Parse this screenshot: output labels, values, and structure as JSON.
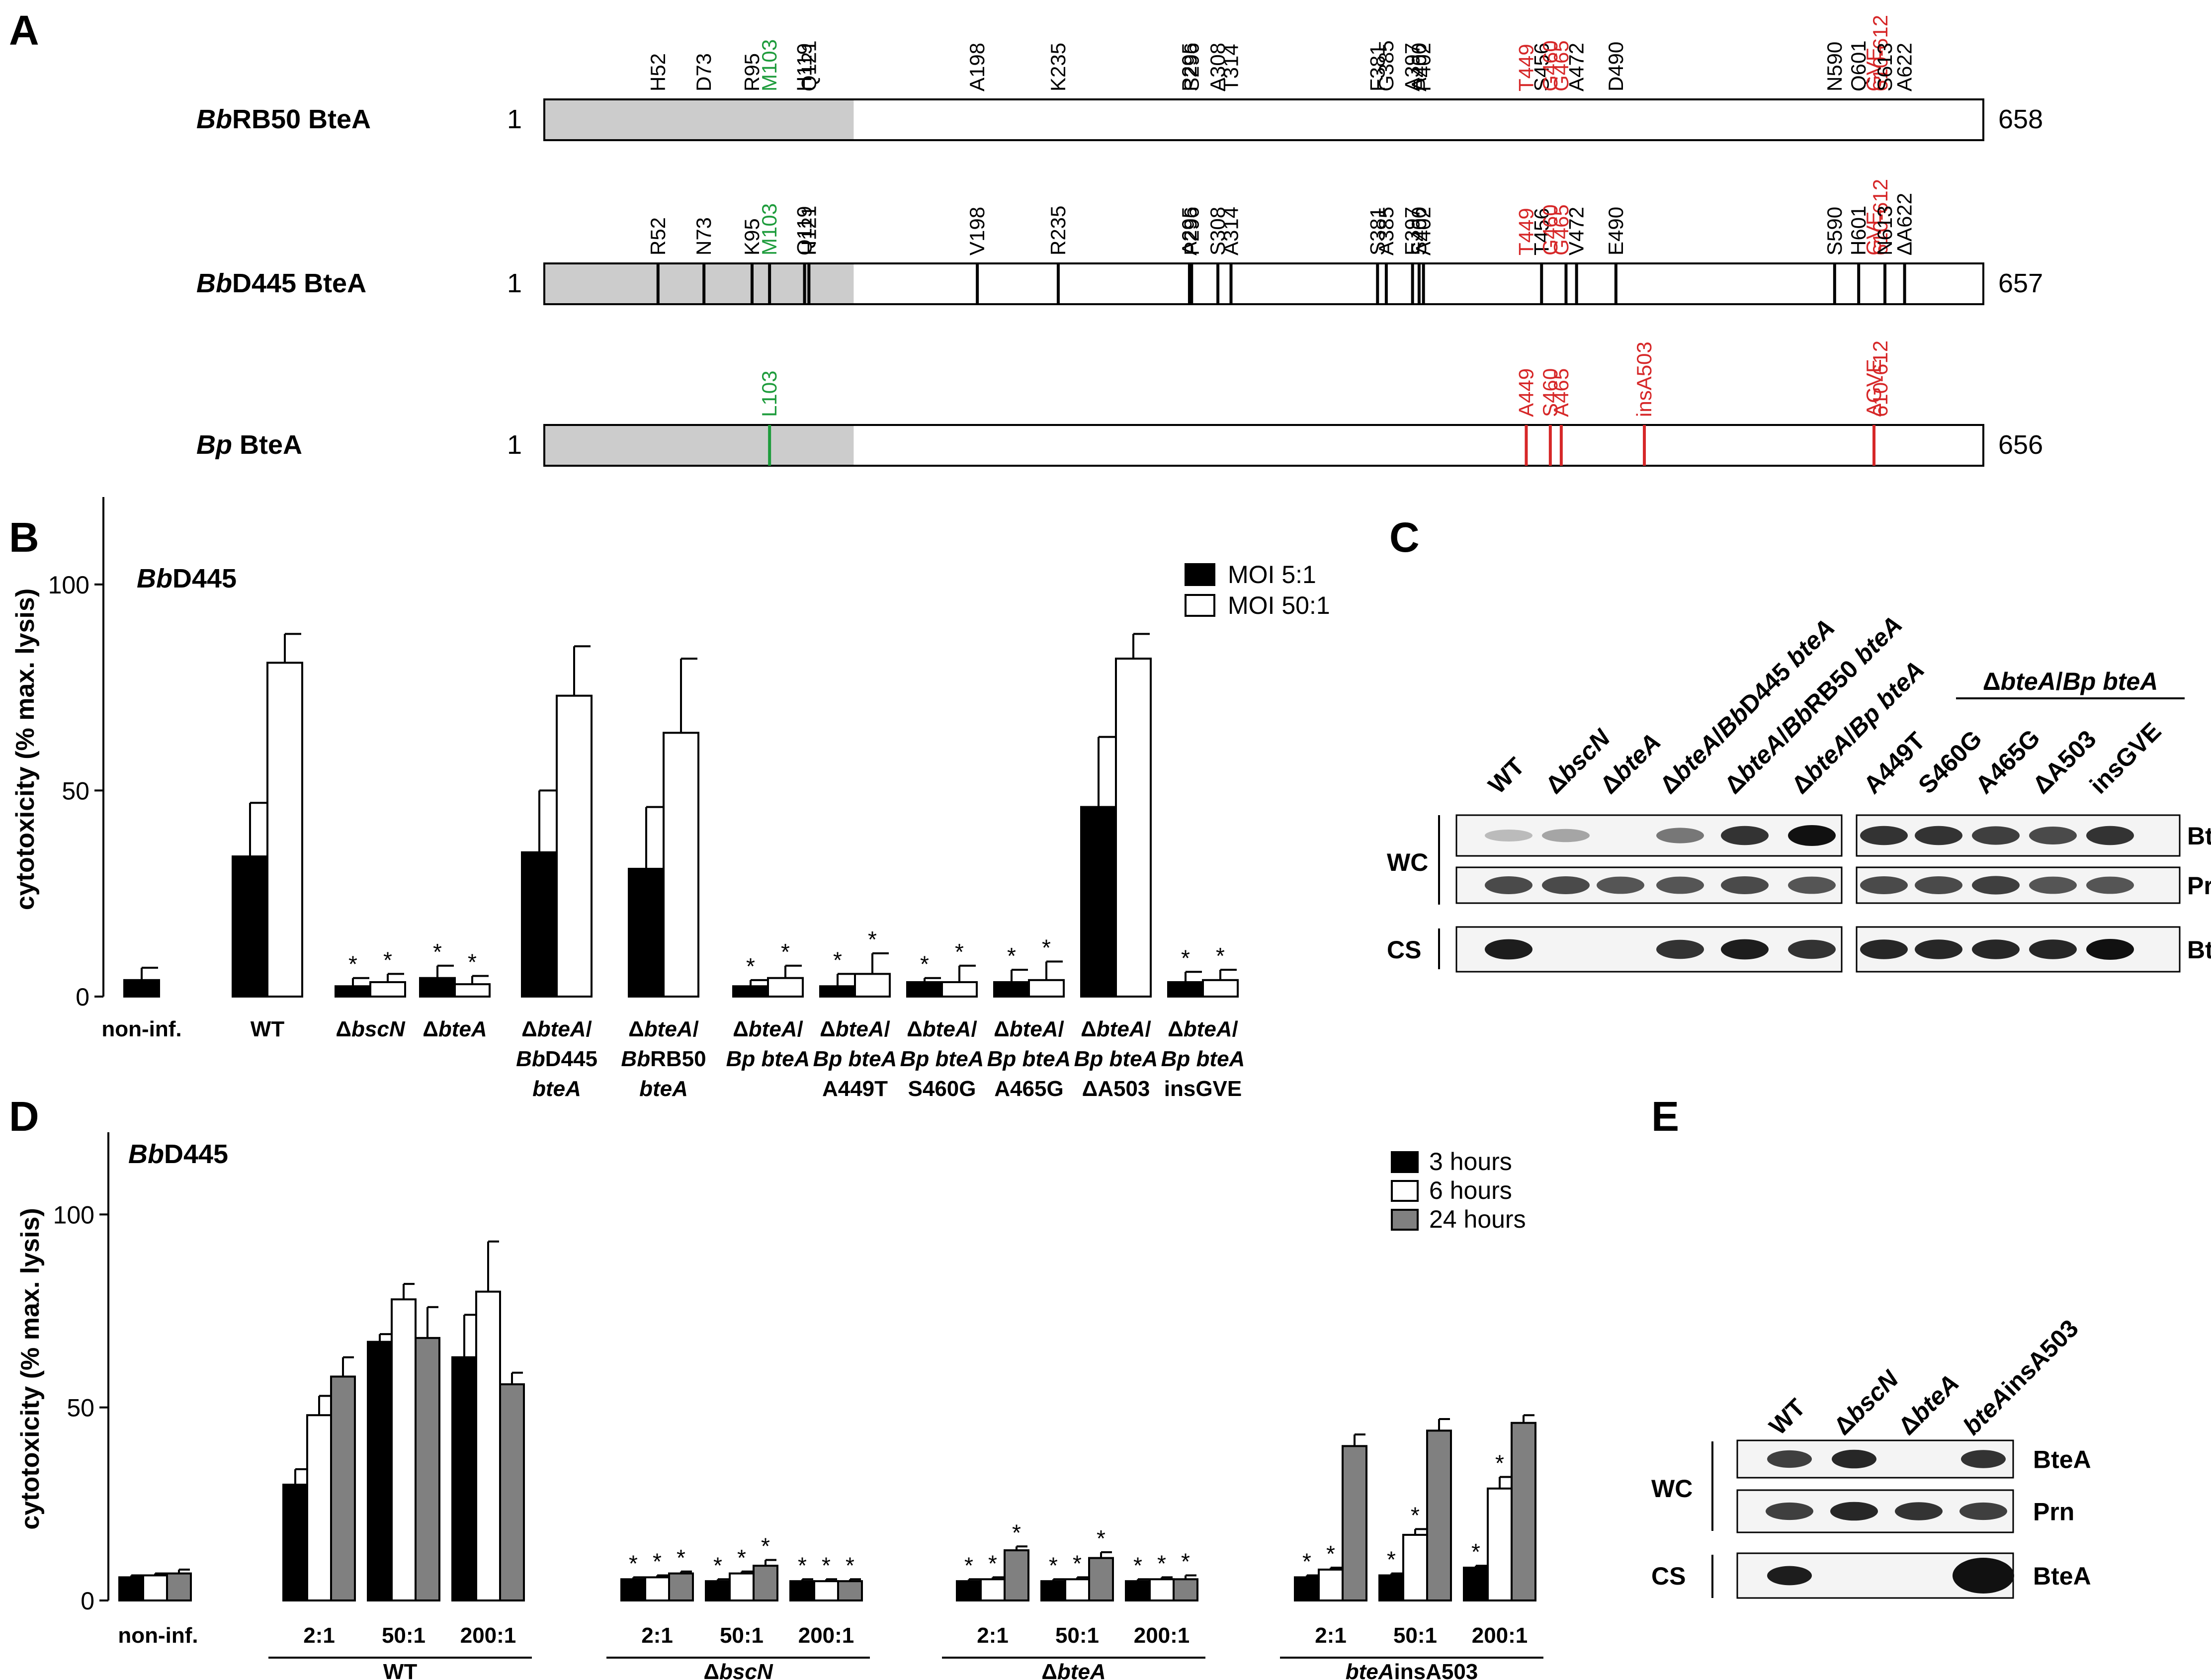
{
  "panels": {
    "A": "A",
    "B": "B",
    "C": "C",
    "D": "D",
    "E": "E"
  },
  "panel_a": {
    "protein_start": "1",
    "proteins": [
      {
        "name_prefix": "Bb",
        "name_suffix": "RB50 BteA",
        "length": "658",
        "mutations": [
          {
            "label": "H52",
            "color": "#000000"
          },
          {
            "label": "D73",
            "color": "#000000"
          },
          {
            "label": "R95",
            "color": "#000000"
          },
          {
            "label": "M103",
            "color": "#1e9c3c"
          },
          {
            "label": "H119",
            "color": "#000000"
          },
          {
            "label": "Q121",
            "color": "#000000"
          },
          {
            "label": "A198",
            "color": "#000000"
          },
          {
            "label": "K235",
            "color": "#000000"
          },
          {
            "label": "P295",
            "color": "#000000"
          },
          {
            "label": "S296",
            "color": "#000000"
          },
          {
            "label": "A308",
            "color": "#000000"
          },
          {
            "label": "T314",
            "color": "#000000"
          },
          {
            "label": "F381",
            "color": "#000000"
          },
          {
            "label": "G385",
            "color": "#000000"
          },
          {
            "label": "A397",
            "color": "#000000"
          },
          {
            "label": "A400",
            "color": "#000000"
          },
          {
            "label": "P402",
            "color": "#000000"
          },
          {
            "label": "T449",
            "color": "#d62728"
          },
          {
            "label": "S456",
            "color": "#000000"
          },
          {
            "label": "G460",
            "color": "#d62728"
          },
          {
            "label": "G465",
            "color": "#d62728"
          },
          {
            "label": "A472",
            "color": "#000000"
          },
          {
            "label": "D490",
            "color": "#000000"
          },
          {
            "label": "N590",
            "color": "#000000"
          },
          {
            "label": "Q601",
            "color": "#000000"
          },
          {
            "label": "GVE",
            "color": "#d62728"
          },
          {
            "label": "610-612",
            "color": "#d62728"
          },
          {
            "label": "S613",
            "color": "#000000"
          },
          {
            "label": "A622",
            "color": "#000000"
          }
        ]
      },
      {
        "name_prefix": "Bb",
        "name_suffix": "D445 BteA",
        "length": "657",
        "mutations": [
          {
            "label": "R52",
            "color": "#000000"
          },
          {
            "label": "N73",
            "color": "#000000"
          },
          {
            "label": "K95",
            "color": "#000000"
          },
          {
            "label": "M103",
            "color": "#1e9c3c"
          },
          {
            "label": "Q119",
            "color": "#000000"
          },
          {
            "label": "H121",
            "color": "#000000"
          },
          {
            "label": "V198",
            "color": "#000000"
          },
          {
            "label": "R235",
            "color": "#000000"
          },
          {
            "label": "A295",
            "color": "#000000"
          },
          {
            "label": "P296",
            "color": "#000000"
          },
          {
            "label": "S308",
            "color": "#000000"
          },
          {
            "label": "A314",
            "color": "#000000"
          },
          {
            "label": "S381",
            "color": "#000000"
          },
          {
            "label": "A385",
            "color": "#000000"
          },
          {
            "label": "E397",
            "color": "#000000"
          },
          {
            "label": "S400",
            "color": "#000000"
          },
          {
            "label": "A402",
            "color": "#000000"
          },
          {
            "label": "T449",
            "color": "#d62728"
          },
          {
            "label": "T456",
            "color": "#000000"
          },
          {
            "label": "G460",
            "color": "#d62728"
          },
          {
            "label": "G465",
            "color": "#d62728"
          },
          {
            "label": "V472",
            "color": "#000000"
          },
          {
            "label": "E490",
            "color": "#000000"
          },
          {
            "label": "S590",
            "color": "#000000"
          },
          {
            "label": "H601",
            "color": "#000000"
          },
          {
            "label": "GVE",
            "color": "#d62728"
          },
          {
            "label": "610-612",
            "color": "#d62728"
          },
          {
            "label": "N613",
            "color": "#000000"
          },
          {
            "label": "ΔA622",
            "color": "#000000"
          }
        ]
      },
      {
        "name_prefix": "Bp",
        "name_suffix": " BteA",
        "length": "656",
        "mutations": [
          {
            "label": "L103",
            "color": "#1e9c3c"
          },
          {
            "label": "A449",
            "color": "#d62728"
          },
          {
            "label": "S460",
            "color": "#d62728"
          },
          {
            "label": "A465",
            "color": "#d62728"
          },
          {
            "label": "insA503",
            "color": "#d62728"
          },
          {
            "label": "ΔGVE",
            "color": "#d62728"
          },
          {
            "label": "610-612",
            "color": "#d62728"
          }
        ]
      }
    ]
  },
  "panel_b": {
    "strain_label": {
      "prefix": "Bb",
      "suffix": "D445"
    },
    "ylabel": "cytotoxicity (% max. lysis)",
    "legend": [
      "MOI 5:1",
      "MOI 50:1"
    ],
    "x_labels": [
      [
        "non-inf."
      ],
      [
        "WT"
      ],
      [
        "ΔbscN"
      ],
      [
        "ΔbteA"
      ],
      [
        "ΔbteA/",
        "BbD445",
        "bteA"
      ],
      [
        "ΔbteA/",
        "BbRB50",
        "bteA"
      ],
      [
        "ΔbteA/",
        "Bp bteA"
      ],
      [
        "ΔbteA/",
        "Bp bteA",
        "A449T"
      ],
      [
        "ΔbteA/",
        "Bp bteA",
        "S460G"
      ],
      [
        "ΔbteA/",
        "Bp bteA",
        "A465G"
      ],
      [
        "ΔbteA/",
        "Bp bteA",
        "ΔA503"
      ],
      [
        "ΔbteA/",
        "Bp bteA",
        "insGVE"
      ]
    ],
    "significance_mark": "*"
  },
  "panel_c": {
    "group_header": "ΔbteA/Bp bteA",
    "lane_labels": [
      "WT",
      "ΔbscN",
      "ΔbteA",
      "ΔbteA/BbD445 bteA",
      "ΔbteA/BbRB50 bteA",
      "ΔbteA/Bp bteA",
      "A449T",
      "S460G",
      "A465G",
      "ΔA503",
      "insGVE"
    ],
    "row_groups": [
      "WC",
      "CS"
    ],
    "row_labels": [
      "BteA",
      "Prn",
      "BteA"
    ]
  },
  "panel_d": {
    "strain_label": {
      "prefix": "Bb",
      "suffix": "D445"
    },
    "ylabel": "cytotoxicity (% max. lysis)",
    "legend": [
      "3 hours",
      "6 hours",
      "24 hours"
    ],
    "moi_labels": [
      "2:1",
      "50:1",
      "200:1"
    ],
    "group_labels": [
      "WT",
      "ΔbscN",
      "ΔbteA",
      "bteAinsA503"
    ],
    "non_inf_label": "non-inf.",
    "significance_mark": "*"
  },
  "panel_e": {
    "lane_labels": [
      "WT",
      "ΔbscN",
      "ΔbteA",
      "bteAinsA503"
    ],
    "row_groups": [
      "WC",
      "CS"
    ],
    "row_labels": [
      "BteA",
      "Prn",
      "BteA"
    ]
  },
  "chart_data": [
    {
      "type": "bar",
      "panel": "B",
      "categories": [
        "non-inf.",
        "WT",
        "ΔbscN",
        "ΔbteA",
        "ΔbteA/BbD445 bteA",
        "ΔbteA/BbRB50 bteA",
        "ΔbteA/Bp bteA",
        "ΔbteA/Bp bteA A449T",
        "ΔbteA/Bp bteA S460G",
        "ΔbteA/Bp bteA A465G",
        "ΔbteA/Bp bteA ΔA503",
        "ΔbteA/Bp bteA insGVE"
      ],
      "series": [
        {
          "name": "MOI 5:1",
          "values": [
            4,
            34,
            2.5,
            4.5,
            35,
            31,
            2.5,
            2.5,
            3.5,
            3.5,
            46,
            3.5
          ],
          "errors": [
            3,
            13,
            2,
            3,
            15,
            15,
            1.5,
            3,
            1,
            3,
            17,
            2.5
          ],
          "significant": [
            false,
            false,
            true,
            true,
            false,
            false,
            true,
            true,
            true,
            true,
            false,
            true
          ]
        },
        {
          "name": "MOI 50:1",
          "values": [
            0,
            81,
            3.5,
            3,
            73,
            64,
            4.5,
            5.5,
            3.5,
            4,
            82,
            4
          ],
          "errors": [
            0,
            7,
            2,
            2,
            12,
            18,
            3,
            5,
            4,
            4.5,
            6,
            2.5
          ],
          "significant": [
            false,
            false,
            true,
            true,
            false,
            false,
            true,
            true,
            true,
            true,
            false,
            true
          ]
        }
      ],
      "ylabel": "cytotoxicity (% max. lysis)",
      "ylim": [
        0,
        120
      ],
      "yticks": [
        0,
        50,
        100
      ]
    },
    {
      "type": "bar",
      "panel": "D",
      "categories": [
        "non-inf.",
        "WT 2:1",
        "WT 50:1",
        "WT 200:1",
        "ΔbscN 2:1",
        "ΔbscN 50:1",
        "ΔbscN 200:1",
        "ΔbteA 2:1",
        "ΔbteA 50:1",
        "ΔbteA 200:1",
        "bteAinsA503 2:1",
        "bteAinsA503 50:1",
        "bteAinsA503 200:1"
      ],
      "series": [
        {
          "name": "3 hours",
          "values": [
            6,
            30,
            67,
            63,
            5.5,
            5,
            5,
            5,
            5,
            5,
            6,
            6.5,
            8.5
          ],
          "errors": [
            0.5,
            4,
            2,
            11,
            0.5,
            0.5,
            0.5,
            0.5,
            0.5,
            0.5,
            0.5,
            0.5,
            0.5
          ],
          "significant": [
            false,
            false,
            false,
            false,
            true,
            true,
            true,
            true,
            true,
            true,
            true,
            true,
            true
          ]
        },
        {
          "name": "6 hours",
          "values": [
            6.5,
            48,
            78,
            80,
            6,
            7,
            5,
            5.5,
            5.5,
            5.5,
            8,
            17,
            29
          ],
          "errors": [
            0.5,
            5,
            4,
            13,
            0.5,
            0.5,
            0.5,
            0.5,
            0.5,
            0.5,
            0.5,
            1.5,
            3
          ],
          "significant": [
            false,
            false,
            false,
            false,
            true,
            true,
            true,
            true,
            true,
            true,
            true,
            true,
            true
          ]
        },
        {
          "name": "24 hours",
          "values": [
            7,
            58,
            68,
            56,
            7,
            9,
            5,
            13,
            11,
            5.5,
            40,
            44,
            46
          ],
          "errors": [
            1,
            5,
            8,
            3,
            0.5,
            1.5,
            0.5,
            1,
            1.5,
            1,
            3,
            3,
            2
          ],
          "significant": [
            false,
            false,
            false,
            false,
            true,
            true,
            true,
            true,
            true,
            true,
            false,
            false,
            false
          ]
        }
      ],
      "ylabel": "cytotoxicity (% max. lysis)",
      "ylim": [
        0,
        120
      ],
      "yticks": [
        0,
        50,
        100
      ]
    }
  ]
}
